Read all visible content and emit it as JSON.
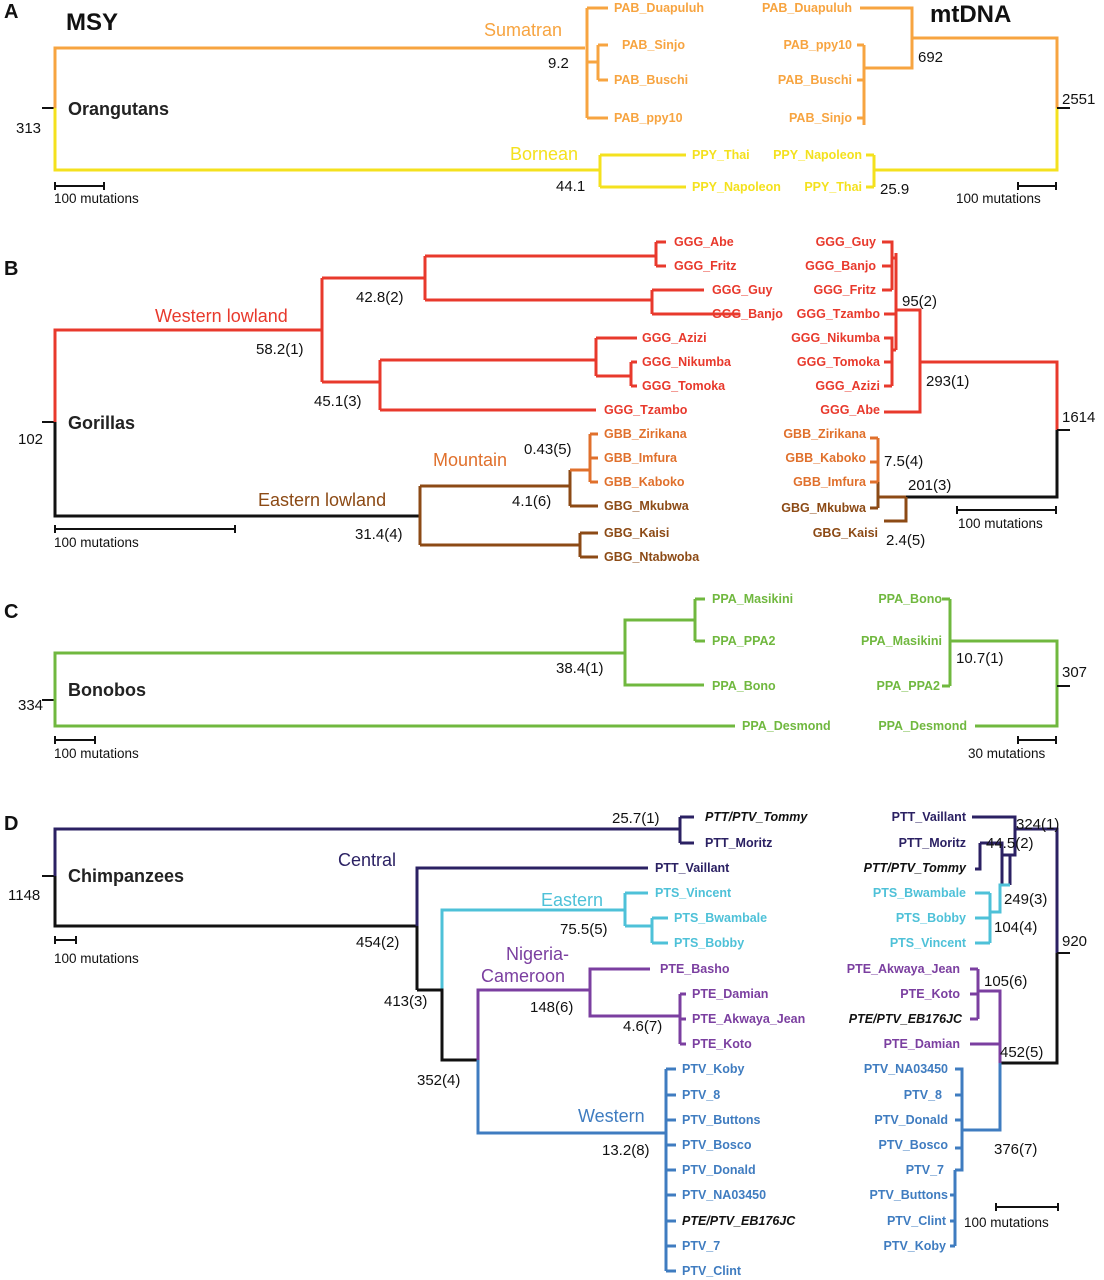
{
  "colors": {
    "orange": "#f7a440",
    "yellow": "#f4e11e",
    "red": "#e8392c",
    "brown": "#8c4a15",
    "darkorange": "#e0702c",
    "green": "#70b83f",
    "navy": "#2b2163",
    "cyan": "#4ec1d8",
    "purple": "#7b3fa0",
    "blue": "#3f7cc0",
    "black": "#111111"
  },
  "header": {
    "left_title": "MSY",
    "right_title": "mtDNA"
  },
  "panels": {
    "A": {
      "letter": "A",
      "group": "Orangutans",
      "root_value": "313",
      "clade_sumatran": "Sumatran",
      "clade_bornean": "Bornean",
      "msy_nodes": {
        "sumatran": "9.2",
        "bornean": "44.1"
      },
      "mt_nodes": {
        "sumatran": "692",
        "bornean": "25.9",
        "root": "2551"
      },
      "msy_leaves": [
        "PAB_Duapuluh",
        "PAB_Sinjo",
        "PAB_Buschi",
        "PAB_ppy10",
        "PPY_Thai",
        "PPY_Napoleon"
      ],
      "mt_leaves": [
        "PAB_Duapuluh",
        "PAB_ppy10",
        "PAB_Buschi",
        "PAB_Sinjo",
        "PPY_Napoleon",
        "PPY_Thai"
      ],
      "scale_left": "100 mutations",
      "scale_right": "100 mutations"
    },
    "B": {
      "letter": "B",
      "group": "Gorillas",
      "root_value": "102",
      "clade_western": "Western lowland",
      "clade_mountain": "Mountain",
      "clade_eastern": "Eastern lowland",
      "msy_nodes": {
        "western": "58.2(1)",
        "abe_guy": "42.8(2)",
        "azizi": "45.1(3)",
        "mountain": "0.43(5)",
        "eastern_sub": "4.1(6)",
        "eastern": "31.4(4)"
      },
      "mt_nodes": {
        "western_sub": "95(2)",
        "western": "293(1)",
        "root": "1614",
        "mountain": "7.5(4)",
        "eastern": "201(3)",
        "kaisi": "2.4(5)"
      },
      "msy_leaves": [
        "GGG_Abe",
        "GGG_Fritz",
        "GGG_Guy",
        "GGG_Banjo",
        "GGG_Azizi",
        "GGG_Nikumba",
        "GGG_Tomoka",
        "GGG_Tzambo",
        "GBB_Zirikana",
        "GBB_Imfura",
        "GBB_Kaboko",
        "GBG_Mkubwa",
        "GBG_Kaisi",
        "GBG_Ntabwoba"
      ],
      "mt_leaves": [
        "GGG_Guy",
        "GGG_Banjo",
        "GGG_Fritz",
        "GGG_Tzambo",
        "GGG_Nikumba",
        "GGG_Tomoka",
        "GGG_Azizi",
        "GGG_Abe",
        "GBB_Zirikana",
        "GBB_Kaboko",
        "GBB_Imfura",
        "GBG_Mkubwa",
        "GBG_Kaisi"
      ],
      "scale_left": "100 mutations",
      "scale_right": "100 mutations"
    },
    "C": {
      "letter": "C",
      "group": "Bonobos",
      "root_value": "334",
      "msy_nodes": {
        "main": "38.4(1)"
      },
      "mt_nodes": {
        "main": "10.7(1)",
        "root": "307"
      },
      "msy_leaves": [
        "PPA_Masikini",
        "PPA_PPA2",
        "PPA_Bono",
        "PPA_Desmond"
      ],
      "mt_leaves": [
        "PPA_Bono",
        "PPA_Masikini",
        "PPA_PPA2",
        "PPA_Desmond"
      ],
      "scale_left": "100 mutations",
      "scale_right": "30 mutations"
    },
    "D": {
      "letter": "D",
      "group": "Chimpanzees",
      "root_value": "1148",
      "clade_central": "Central",
      "clade_eastern": "Eastern",
      "clade_nigeria1": "Nigeria-",
      "clade_nigeria2": "Cameroon",
      "clade_western": "Western",
      "msy_nodes": {
        "tommy": "25.7(1)",
        "eastern": "75.5(5)",
        "central": "454(2)",
        "nigeria": "148(6)",
        "nigeria_sub": "4.6(7)",
        "mid": "413(3)",
        "western_split": "352(4)",
        "western": "13.2(8)"
      },
      "mt_nodes": {
        "vaillant": "324(1)",
        "moritz": "44.5(2)",
        "eastern_join": "249(3)",
        "bobby": "104(4)",
        "root": "920",
        "nigeria": "105(6)",
        "nw": "452(5)",
        "western": "376(7)"
      },
      "msy_leaves": [
        "PTT/PTV_Tommy",
        "PTT_Moritz",
        "PTT_Vaillant",
        "PTS_Vincent",
        "PTS_Bwambale",
        "PTS_Bobby",
        "PTE_Basho",
        "PTE_Damian",
        "PTE_Akwaya_Jean",
        "PTE_Koto",
        "PTV_Koby",
        "PTV_8",
        "PTV_Buttons",
        "PTV_Bosco",
        "PTV_Donald",
        "PTV_NA03450",
        "PTE/PTV_EB176JC",
        "PTV_7",
        "PTV_Clint"
      ],
      "mt_leaves": [
        "PTT_Vaillant",
        "PTT_Moritz",
        "PTT/PTV_Tommy",
        "PTS_Bwambale",
        "PTS_Bobby",
        "PTS_Vincent",
        "PTE_Akwaya_Jean",
        "PTE_Koto",
        "PTE/PTV_EB176JC",
        "PTE_Damian",
        "PTV_NA03450",
        "PTV_8",
        "PTV_Donald",
        "PTV_Bosco",
        "PTV_7",
        "PTV_Buttons",
        "PTV_Clint",
        "PTV_Koby"
      ],
      "scale_left": "100 mutations",
      "scale_right": "100 mutations"
    }
  }
}
